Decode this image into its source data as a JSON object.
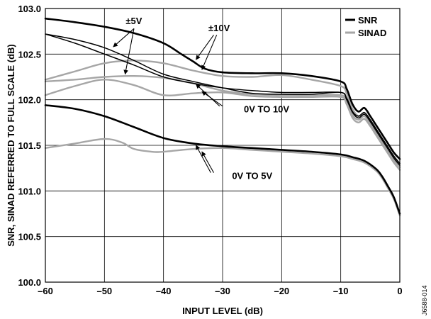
{
  "chart_data": {
    "type": "line",
    "xlabel": "INPUT LEVEL (dB)",
    "ylabel": "SNR, SINAD REFERRED TO FULL SCALE (dB)",
    "xlim": [
      -60,
      0
    ],
    "ylim": [
      100.0,
      103.0
    ],
    "x_ticks": [
      "–60",
      "–50",
      "–40",
      "–30",
      "–20",
      "–10",
      "0"
    ],
    "y_ticks": [
      "100.0",
      "100.5",
      "101.0",
      "101.5",
      "102.0",
      "102.5",
      "103.0"
    ],
    "grid": true,
    "legend_position": "top-right",
    "legend": [
      {
        "label": "SNR",
        "color": "#000000"
      },
      {
        "label": "SINAD",
        "color": "#a6a6a6"
      }
    ],
    "series": [
      {
        "group": "±10V",
        "metric": "SNR",
        "color": "#000000",
        "points": [
          [
            -60,
            102.89
          ],
          [
            -55,
            102.85
          ],
          [
            -50,
            102.8
          ],
          [
            -45,
            102.73
          ],
          [
            -40,
            102.62
          ],
          [
            -37,
            102.5
          ],
          [
            -35,
            102.42
          ],
          [
            -33,
            102.34
          ],
          [
            -30,
            102.3
          ],
          [
            -25,
            102.29
          ],
          [
            -20,
            102.29
          ],
          [
            -15,
            102.26
          ],
          [
            -10,
            102.2
          ],
          [
            -9,
            102.12
          ],
          [
            -8,
            101.95
          ],
          [
            -7,
            101.87
          ],
          [
            -6,
            101.91
          ],
          [
            -5,
            101.82
          ],
          [
            -4,
            101.72
          ],
          [
            -3,
            101.62
          ],
          [
            -2,
            101.52
          ],
          [
            -1,
            101.42
          ],
          [
            0,
            101.35
          ]
        ]
      },
      {
        "group": "±10V",
        "metric": "SINAD",
        "color": "#a6a6a6",
        "points": [
          [
            -60,
            102.22
          ],
          [
            -55,
            102.31
          ],
          [
            -50,
            102.4
          ],
          [
            -45,
            102.43
          ],
          [
            -40,
            102.4
          ],
          [
            -35,
            102.32
          ],
          [
            -30,
            102.26
          ],
          [
            -25,
            102.25
          ],
          [
            -20,
            102.27
          ],
          [
            -15,
            102.22
          ],
          [
            -10,
            102.15
          ],
          [
            -9,
            102.07
          ],
          [
            -8,
            101.9
          ],
          [
            -7,
            101.82
          ],
          [
            -6,
            101.85
          ],
          [
            -5,
            101.77
          ],
          [
            -4,
            101.67
          ],
          [
            -3,
            101.57
          ],
          [
            -2,
            101.47
          ],
          [
            -1,
            101.38
          ],
          [
            0,
            101.3
          ]
        ]
      },
      {
        "group": "±5V",
        "metric": "SNR",
        "color": "#000000",
        "points": [
          [
            -60,
            102.72
          ],
          [
            -55,
            102.62
          ],
          [
            -50,
            102.5
          ],
          [
            -45,
            102.38
          ],
          [
            -40,
            102.25
          ],
          [
            -35,
            102.18
          ],
          [
            -30,
            102.13
          ],
          [
            -25,
            102.1
          ],
          [
            -20,
            102.08
          ],
          [
            -15,
            102.08
          ],
          [
            -10,
            102.08
          ],
          [
            -9,
            102.02
          ],
          [
            -8,
            101.87
          ],
          [
            -7,
            101.82
          ],
          [
            -6,
            101.86
          ],
          [
            -5,
            101.78
          ],
          [
            -4,
            101.68
          ],
          [
            -3,
            101.58
          ],
          [
            -2,
            101.48
          ],
          [
            -1,
            101.38
          ],
          [
            0,
            101.3
          ]
        ]
      },
      {
        "group": "±5V",
        "metric": "SINAD",
        "color": "#a6a6a6",
        "points": [
          [
            -60,
            102.2
          ],
          [
            -55,
            102.22
          ],
          [
            -50,
            102.25
          ],
          [
            -45,
            102.26
          ],
          [
            -40,
            102.24
          ],
          [
            -35,
            102.18
          ],
          [
            -30,
            102.1
          ],
          [
            -25,
            102.06
          ],
          [
            -20,
            102.05
          ],
          [
            -15,
            102.05
          ],
          [
            -10,
            102.05
          ],
          [
            -9,
            101.98
          ],
          [
            -8,
            101.83
          ],
          [
            -7,
            101.78
          ],
          [
            -6,
            101.82
          ],
          [
            -5,
            101.74
          ],
          [
            -4,
            101.64
          ],
          [
            -3,
            101.54
          ],
          [
            -2,
            101.44
          ],
          [
            -1,
            101.34
          ],
          [
            0,
            101.26
          ]
        ]
      },
      {
        "group": "0V TO 10V",
        "metric": "SNR",
        "color": "#000000",
        "points": [
          [
            -60,
            102.72
          ],
          [
            -55,
            102.66
          ],
          [
            -50,
            102.57
          ],
          [
            -45,
            102.43
          ],
          [
            -40,
            102.28
          ],
          [
            -35,
            102.2
          ],
          [
            -30,
            102.13
          ],
          [
            -25,
            102.07
          ],
          [
            -20,
            102.06
          ],
          [
            -15,
            102.06
          ],
          [
            -10,
            102.08
          ],
          [
            -9,
            102.0
          ],
          [
            -8,
            101.86
          ],
          [
            -7,
            101.8
          ],
          [
            -6,
            101.84
          ],
          [
            -5,
            101.76
          ],
          [
            -4,
            101.66
          ],
          [
            -3,
            101.56
          ],
          [
            -2,
            101.46
          ],
          [
            -1,
            101.36
          ],
          [
            0,
            101.28
          ]
        ]
      },
      {
        "group": "0V TO 10V",
        "metric": "SINAD",
        "color": "#a6a6a6",
        "points": [
          [
            -60,
            102.05
          ],
          [
            -55,
            102.15
          ],
          [
            -50,
            102.22
          ],
          [
            -45,
            102.16
          ],
          [
            -40,
            102.05
          ],
          [
            -35,
            102.07
          ],
          [
            -30,
            102.08
          ],
          [
            -25,
            102.04
          ],
          [
            -20,
            102.03
          ],
          [
            -15,
            102.03
          ],
          [
            -10,
            102.03
          ],
          [
            -9,
            101.95
          ],
          [
            -8,
            101.8
          ],
          [
            -7,
            101.75
          ],
          [
            -6,
            101.79
          ],
          [
            -5,
            101.71
          ],
          [
            -4,
            101.61
          ],
          [
            -3,
            101.51
          ],
          [
            -2,
            101.41
          ],
          [
            -1,
            101.31
          ],
          [
            0,
            101.23
          ]
        ]
      },
      {
        "group": "0V TO 5V",
        "metric": "SNR",
        "color": "#000000",
        "points": [
          [
            -60,
            101.94
          ],
          [
            -55,
            101.9
          ],
          [
            -50,
            101.82
          ],
          [
            -45,
            101.7
          ],
          [
            -40,
            101.58
          ],
          [
            -35,
            101.52
          ],
          [
            -30,
            101.49
          ],
          [
            -25,
            101.47
          ],
          [
            -20,
            101.45
          ],
          [
            -15,
            101.43
          ],
          [
            -10,
            101.4
          ],
          [
            -8,
            101.37
          ],
          [
            -6,
            101.33
          ],
          [
            -4,
            101.24
          ],
          [
            -3,
            101.16
          ],
          [
            -2,
            101.05
          ],
          [
            -1,
            100.93
          ],
          [
            0,
            100.75
          ]
        ]
      },
      {
        "group": "0V TO 5V",
        "metric": "SINAD",
        "color": "#a6a6a6",
        "points": [
          [
            -60,
            101.47
          ],
          [
            -55,
            101.52
          ],
          [
            -50,
            101.57
          ],
          [
            -47,
            101.53
          ],
          [
            -45,
            101.46
          ],
          [
            -42,
            101.43
          ],
          [
            -40,
            101.43
          ],
          [
            -35,
            101.46
          ],
          [
            -30,
            101.47
          ],
          [
            -25,
            101.45
          ],
          [
            -20,
            101.43
          ],
          [
            -15,
            101.41
          ],
          [
            -10,
            101.38
          ],
          [
            -8,
            101.35
          ],
          [
            -6,
            101.31
          ],
          [
            -4,
            101.22
          ],
          [
            -3,
            101.14
          ],
          [
            -2,
            101.03
          ],
          [
            -1,
            100.91
          ],
          [
            0,
            100.73
          ]
        ]
      }
    ],
    "annotations": [
      {
        "text": "±5V",
        "x": -46.4,
        "y": 102.83
      },
      {
        "text": "±10V",
        "x": -32.4,
        "y": 102.75
      },
      {
        "text": "0V TO 10V",
        "x": -26.4,
        "y": 101.86
      },
      {
        "text": "0V TO 5V",
        "x": -28.4,
        "y": 101.13
      }
    ]
  },
  "figure_id": "J6588-014"
}
